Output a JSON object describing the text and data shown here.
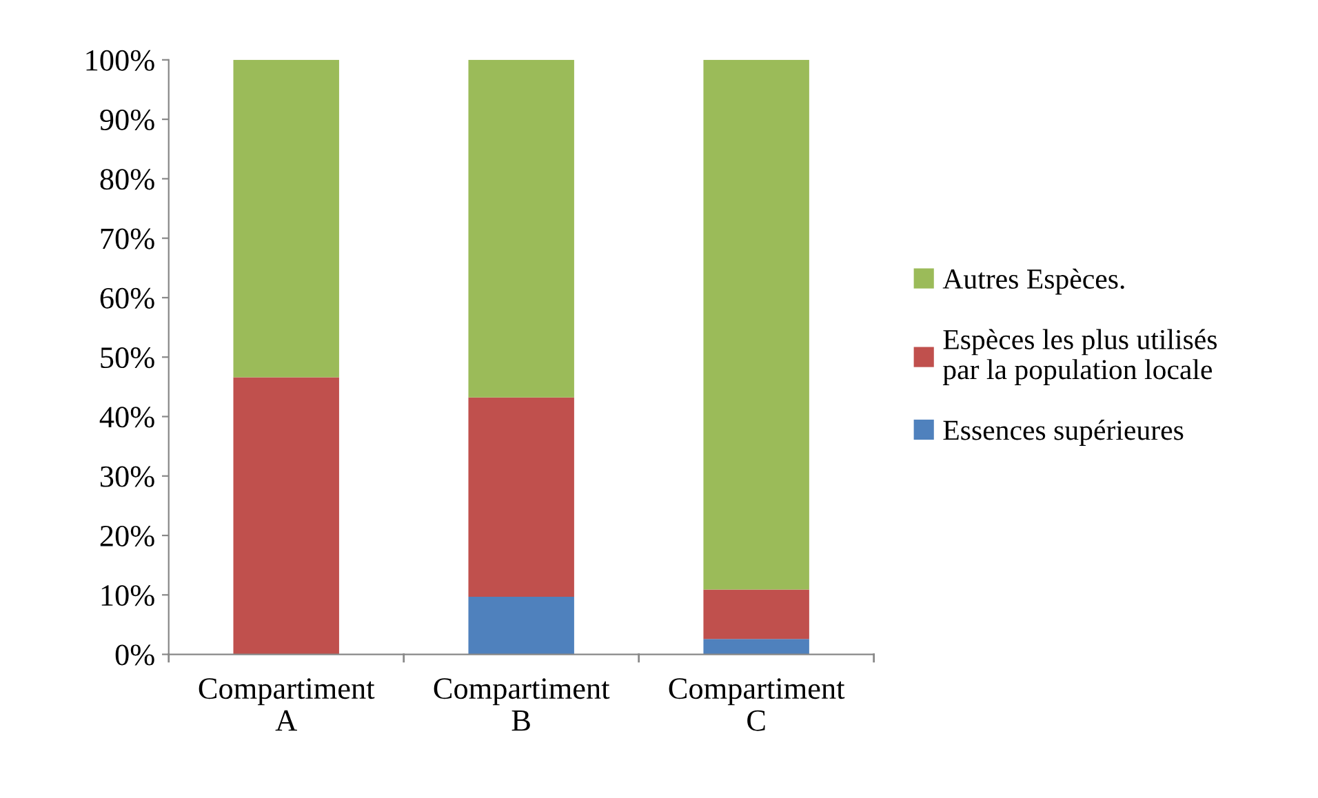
{
  "chart_data": {
    "type": "bar",
    "stacked": true,
    "categories": [
      "Compartiment\nA",
      "Compartiment\nB",
      "Compartiment\nC"
    ],
    "series": [
      {
        "name": "Essences supérieures",
        "color": "#4f81bd",
        "values": [
          0,
          9.7,
          2.6
        ]
      },
      {
        "name": "Espèces les plus utilisés\npar la population locale",
        "color": "#c0504d",
        "values": [
          46.6,
          33.5,
          8.3
        ]
      },
      {
        "name": "Autres Espèces.",
        "color": "#9bbb59",
        "values": [
          53.4,
          56.8,
          89.1
        ]
      }
    ],
    "ylim": [
      0,
      100
    ],
    "yticks": [
      {
        "value": 0,
        "label": "0%"
      },
      {
        "value": 10,
        "label": "10%"
      },
      {
        "value": 20,
        "label": "20%"
      },
      {
        "value": 30,
        "label": "30%"
      },
      {
        "value": 40,
        "label": "40%"
      },
      {
        "value": 50,
        "label": "50%"
      },
      {
        "value": 60,
        "label": "60%"
      },
      {
        "value": 70,
        "label": "70%"
      },
      {
        "value": 80,
        "label": "80%"
      },
      {
        "value": 90,
        "label": "90%"
      },
      {
        "value": 100,
        "label": "100%"
      }
    ],
    "grid": false,
    "legend": "right"
  }
}
